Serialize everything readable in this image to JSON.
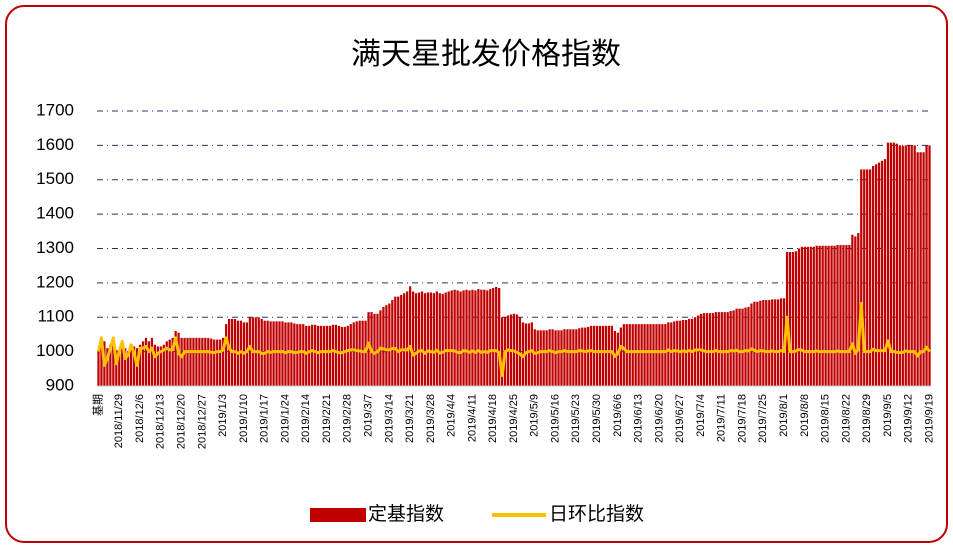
{
  "chart_data": {
    "type": "bar_line",
    "title": "满天星批发价格指数",
    "ylim": [
      900,
      1700
    ],
    "yticks": [
      900,
      1000,
      1100,
      1200,
      1300,
      1400,
      1500,
      1600,
      1700
    ],
    "grid": true,
    "legend": "bottom",
    "categories": [
      "基期",
      null,
      null,
      null,
      null,
      null,
      null,
      "2018/11/29",
      null,
      null,
      null,
      null,
      null,
      null,
      "2018/12/6",
      null,
      null,
      null,
      null,
      null,
      null,
      "2018/12/13",
      null,
      null,
      null,
      null,
      null,
      null,
      "2018/12/20",
      null,
      null,
      null,
      null,
      null,
      null,
      "2018/12/27",
      null,
      null,
      null,
      null,
      null,
      null,
      "2019/1/3",
      null,
      null,
      null,
      null,
      null,
      null,
      "2019/1/10",
      null,
      null,
      null,
      null,
      null,
      null,
      "2019/1/17",
      null,
      null,
      null,
      null,
      null,
      null,
      "2019/1/24",
      null,
      null,
      null,
      null,
      null,
      null,
      "2019/2/14",
      null,
      null,
      null,
      null,
      null,
      null,
      "2019/2/21",
      null,
      null,
      null,
      null,
      null,
      null,
      "2019/2/28",
      null,
      null,
      null,
      null,
      null,
      null,
      "2019/3/7",
      null,
      null,
      null,
      null,
      null,
      null,
      "2019/3/14",
      null,
      null,
      null,
      null,
      null,
      null,
      "2019/3/21",
      null,
      null,
      null,
      null,
      null,
      null,
      "2019/3/28",
      null,
      null,
      null,
      null,
      null,
      null,
      "2019/4/4",
      null,
      null,
      null,
      null,
      null,
      null,
      "2019/4/11",
      null,
      null,
      null,
      null,
      null,
      null,
      "2019/4/18",
      null,
      null,
      null,
      null,
      null,
      null,
      "2019/4/25",
      null,
      null,
      null,
      null,
      null,
      null,
      "2019/5/9",
      null,
      null,
      null,
      null,
      null,
      null,
      "2019/5/16",
      null,
      null,
      null,
      null,
      null,
      null,
      "2019/5/23",
      null,
      null,
      null,
      null,
      null,
      null,
      "2019/5/30",
      null,
      null,
      null,
      null,
      null,
      null,
      "2019/6/6",
      null,
      null,
      null,
      null,
      null,
      null,
      "2019/6/13",
      null,
      null,
      null,
      null,
      null,
      null,
      "2019/6/20",
      null,
      null,
      null,
      null,
      null,
      null,
      "2019/6/27",
      null,
      null,
      null,
      null,
      null,
      null,
      "2019/7/4",
      null,
      null,
      null,
      null,
      null,
      null,
      "2019/7/11",
      null,
      null,
      null,
      null,
      null,
      null,
      "2019/7/18",
      null,
      null,
      null,
      null,
      null,
      null,
      "2019/7/25",
      null,
      null,
      null,
      null,
      null,
      null,
      "2019/8/1",
      null,
      null,
      null,
      null,
      null,
      null,
      "2019/8/8",
      null,
      null,
      null,
      null,
      null,
      null,
      "2019/8/15",
      null,
      null,
      null,
      null,
      null,
      null,
      "2019/8/22",
      null,
      null,
      null,
      null,
      null,
      null,
      "2019/8/29",
      null,
      null,
      null,
      null,
      null,
      null,
      "2019/9/5",
      null,
      null,
      null,
      null,
      null,
      null,
      "2019/9/12",
      null,
      null,
      null,
      null,
      null,
      null,
      "2019/9/19"
    ],
    "series": [
      {
        "name": "定基指数",
        "color": "#c00000",
        "kind": "bar",
        "values": [
          1000,
          1040,
          1030,
          1010,
          1020,
          1040,
          1005,
          1000,
          1030,
          1010,
          1000,
          1020,
          1015,
          1010,
          1020,
          1030,
          1040,
          1030,
          1040,
          1020,
          1015,
          1015,
          1020,
          1030,
          1035,
          1040,
          1060,
          1055,
          1040,
          1040,
          1040,
          1040,
          1040,
          1040,
          1040,
          1040,
          1040,
          1040,
          1038,
          1035,
          1035,
          1035,
          1040,
          1080,
          1095,
          1095,
          1095,
          1090,
          1090,
          1085,
          1085,
          1100,
          1100,
          1100,
          1100,
          1095,
          1090,
          1090,
          1088,
          1088,
          1088,
          1088,
          1088,
          1085,
          1085,
          1085,
          1082,
          1080,
          1080,
          1080,
          1075,
          1075,
          1078,
          1078,
          1075,
          1075,
          1075,
          1075,
          1075,
          1078,
          1078,
          1075,
          1072,
          1072,
          1075,
          1080,
          1085,
          1088,
          1090,
          1090,
          1090,
          1115,
          1115,
          1110,
          1110,
          1120,
          1130,
          1135,
          1140,
          1150,
          1160,
          1160,
          1165,
          1170,
          1175,
          1190,
          1175,
          1170,
          1172,
          1175,
          1170,
          1172,
          1172,
          1170,
          1175,
          1170,
          1168,
          1172,
          1175,
          1178,
          1180,
          1178,
          1175,
          1178,
          1180,
          1178,
          1180,
          1178,
          1182,
          1180,
          1180,
          1178,
          1182,
          1185,
          1188,
          1185,
          1100,
          1100,
          1105,
          1108,
          1110,
          1108,
          1100,
          1085,
          1082,
          1082,
          1085,
          1065,
          1062,
          1062,
          1062,
          1062,
          1065,
          1065,
          1062,
          1062,
          1062,
          1065,
          1065,
          1065,
          1065,
          1065,
          1068,
          1070,
          1070,
          1072,
          1075,
          1075,
          1075,
          1075,
          1075,
          1075,
          1075,
          1075,
          1060,
          1055,
          1070,
          1080,
          1080,
          1080,
          1080,
          1080,
          1080,
          1080,
          1080,
          1080,
          1080,
          1080,
          1080,
          1080,
          1080,
          1080,
          1085,
          1085,
          1088,
          1090,
          1090,
          1092,
          1092,
          1095,
          1095,
          1100,
          1105,
          1110,
          1112,
          1112,
          1112,
          1112,
          1115,
          1115,
          1115,
          1115,
          1115,
          1118,
          1120,
          1125,
          1125,
          1125,
          1128,
          1130,
          1140,
          1145,
          1145,
          1148,
          1150,
          1150,
          1150,
          1152,
          1152,
          1152,
          1155,
          1155,
          1290,
          1290,
          1290,
          1292,
          1300,
          1305,
          1305,
          1305,
          1305,
          1305,
          1308,
          1308,
          1308,
          1308,
          1308,
          1308,
          1308,
          1310,
          1310,
          1310,
          1310,
          1310,
          1340,
          1335,
          1345,
          1530,
          1530,
          1530,
          1530,
          1540,
          1545,
          1550,
          1555,
          1560,
          1608,
          1608,
          1608,
          1605,
          1600,
          1598,
          1600,
          1600,
          1600,
          1600,
          1580,
          1580,
          1580,
          1600,
          1600
        ]
      },
      {
        "name": "日环比指数",
        "color": "#ffc000",
        "kind": "line",
        "values": [
          1000,
          1040,
          960,
          980,
          1010,
          1040,
          965,
          1000,
          1030,
          980,
          990,
          1020,
          995,
          960,
          1010,
          1010,
          1015,
          1000,
          1010,
          985,
          995,
          1000,
          1005,
          1010,
          1005,
          1005,
          1040,
          995,
          985,
          1000,
          1000,
          1000,
          1000,
          1000,
          1000,
          1000,
          1000,
          1000,
          998,
          997,
          1000,
          1000,
          1005,
          1040,
          1010,
          1000,
          1000,
          995,
          1000,
          995,
          1000,
          1015,
          1000,
          1000,
          1000,
          995,
          995,
          1000,
          998,
          1000,
          1000,
          1000,
          1000,
          997,
          1000,
          1000,
          997,
          998,
          1000,
          1000,
          995,
          1000,
          1003,
          1000,
          997,
          1000,
          1000,
          1000,
          1000,
          1003,
          1000,
          997,
          997,
          1000,
          1003,
          1005,
          1005,
          1003,
          1002,
          1000,
          1000,
          1025,
          1000,
          995,
          1000,
          1010,
          1008,
          1005,
          1005,
          1009,
          1009,
          1000,
          1005,
          1005,
          1005,
          1015,
          990,
          995,
          1002,
          1003,
          995,
          1002,
          1000,
          998,
          1004,
          996,
          998,
          1003,
          1003,
          1003,
          1002,
          998,
          997,
          1003,
          1002,
          998,
          1002,
          998,
          1003,
          998,
          1000,
          998,
          1003,
          1003,
          1003,
          997,
          930,
          1000,
          1005,
          1003,
          1002,
          998,
          993,
          985,
          997,
          1000,
          1003,
          995,
          997,
          1000,
          1000,
          1000,
          1003,
          1000,
          997,
          1000,
          1000,
          1003,
          1000,
          1000,
          1000,
          1000,
          1003,
          1002,
          1000,
          1002,
          1003,
          1000,
          1000,
          1000,
          1000,
          1000,
          1000,
          1000,
          986,
          995,
          1015,
          1010,
          1000,
          1000,
          1000,
          1000,
          1000,
          1000,
          1000,
          1000,
          1000,
          1000,
          1000,
          1000,
          1000,
          1000,
          1005,
          1000,
          1003,
          1002,
          1000,
          1002,
          1000,
          1003,
          1000,
          1005,
          1005,
          1005,
          1002,
          1000,
          1000,
          1000,
          1003,
          1000,
          1000,
          1000,
          1000,
          1003,
          1002,
          1004,
          1000,
          1000,
          1003,
          1002,
          1008,
          1004,
          1000,
          1003,
          1002,
          1000,
          1000,
          1002,
          1000,
          1000,
          1003,
          1000,
          1100,
          1000,
          1000,
          1002,
          1006,
          1004,
          1000,
          1000,
          1000,
          1000,
          1002,
          1000,
          1000,
          1000,
          1000,
          1000,
          1000,
          1002,
          1000,
          1000,
          1000,
          1000,
          1023,
          995,
          1007,
          1140,
          1000,
          1000,
          1000,
          1007,
          1003,
          1003,
          1003,
          1003,
          1031,
          1000,
          1000,
          998,
          997,
          998,
          1002,
          1000,
          1000,
          1000,
          987,
          1000,
          1000,
          1013,
          1000
        ]
      }
    ]
  }
}
